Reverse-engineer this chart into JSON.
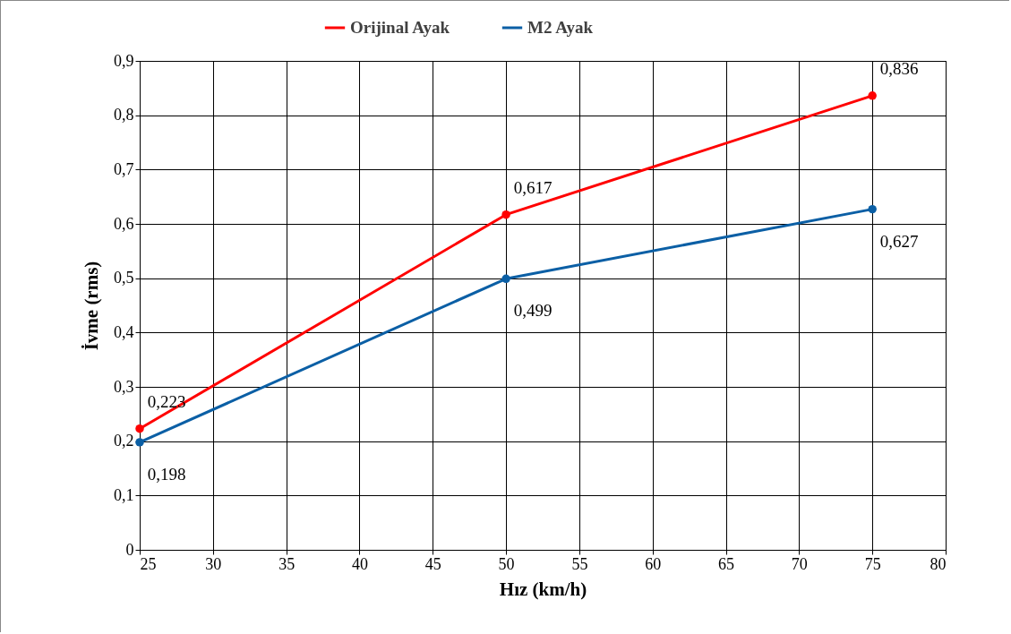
{
  "chart_data": {
    "type": "line",
    "xlabel": "Hız (km/h)",
    "ylabel": "İvme (rms)",
    "x": [
      25,
      50,
      75
    ],
    "series": [
      {
        "name": "Orijinal Ayak",
        "color": "#ff0000",
        "values": [
          0.223,
          0.617,
          0.836
        ],
        "value_labels": [
          "0,223",
          "0,617",
          "0,836"
        ]
      },
      {
        "name": "M2 Ayak",
        "color": "#0b5fa5",
        "values": [
          0.198,
          0.499,
          0.627
        ],
        "value_labels": [
          "0,198",
          "0,499",
          "0,627"
        ]
      }
    ],
    "xlim": [
      25,
      80
    ],
    "xticks": [
      25,
      30,
      35,
      40,
      45,
      50,
      55,
      60,
      65,
      70,
      75,
      80
    ],
    "ylim": [
      0,
      0.9
    ],
    "yticks": [
      0,
      {
        "value": 0.1,
        "label": "0,1"
      },
      {
        "value": 0.2,
        "label": "0,2"
      },
      {
        "value": 0.3,
        "label": "0,3"
      },
      {
        "value": 0.4,
        "label": "0,4"
      },
      {
        "value": 0.5,
        "label": "0,5"
      },
      {
        "value": 0.6,
        "label": "0,6"
      },
      {
        "value": 0.7,
        "label": "0,7"
      },
      {
        "value": 0.8,
        "label": "0,8"
      },
      {
        "value": 0.9,
        "label": "0,9"
      }
    ],
    "grid": true,
    "legend": "top",
    "marker": "circle",
    "line_style": "solid"
  }
}
